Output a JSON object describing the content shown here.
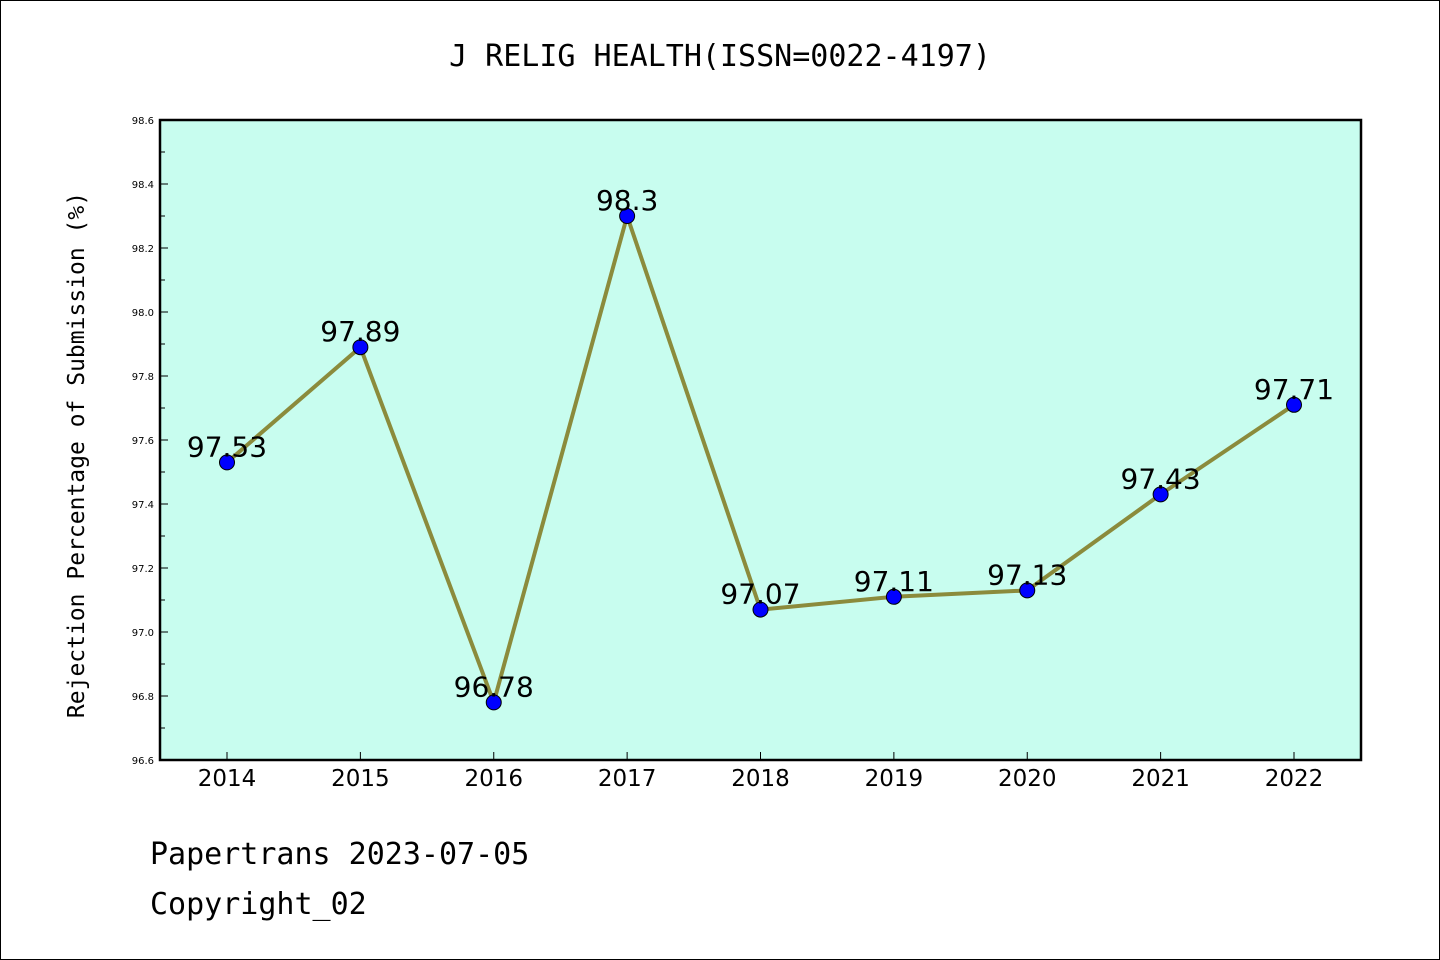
{
  "chart_data": {
    "type": "line",
    "title": "J RELIG HEALTH(ISSN=0022-4197)",
    "xlabel": "",
    "ylabel": "Rejection Percentage of Submission (%)",
    "categories": [
      "2014",
      "2015",
      "2016",
      "2017",
      "2018",
      "2019",
      "2020",
      "2021",
      "2022"
    ],
    "values": [
      97.53,
      97.89,
      96.78,
      98.3,
      97.07,
      97.11,
      97.13,
      97.43,
      97.71
    ],
    "data_labels": [
      "97.53",
      "97.89",
      "96.78",
      "98.3",
      "97.07",
      "97.11",
      "97.13",
      "97.43",
      "97.71"
    ],
    "ylim": [
      96.6,
      98.6
    ],
    "yticks": [
      "96.6",
      "96.8",
      "97.0",
      "97.2",
      "97.4",
      "97.6",
      "97.8",
      "98.0",
      "98.2",
      "98.4",
      "98.6"
    ],
    "grid": false,
    "colors": {
      "plot_bg": "#c8fdef",
      "line": "#8b8b3c",
      "marker": "#0000ff"
    }
  },
  "footer": {
    "line1": "Papertrans 2023-07-05",
    "line2": "Copyright_02"
  }
}
